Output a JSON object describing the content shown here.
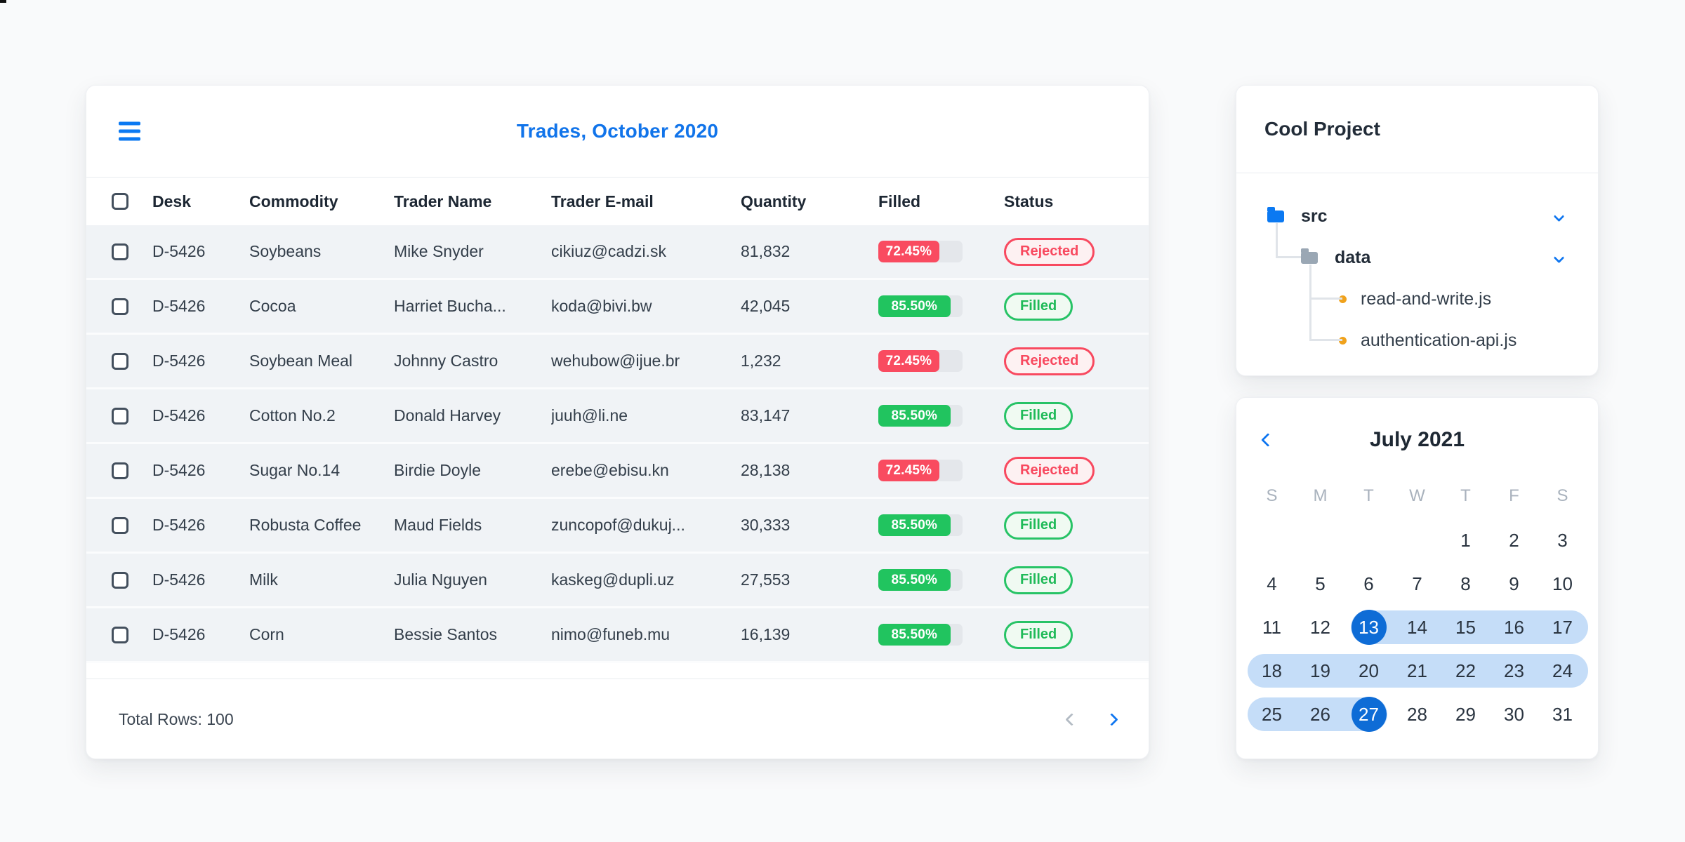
{
  "artifact_text": "g",
  "trades": {
    "title": "Trades, October 2020",
    "columns": [
      "Desk",
      "Commodity",
      "Trader Name",
      "Trader E-mail",
      "Quantity",
      "Filled",
      "Status"
    ],
    "rows": [
      {
        "desk": "D-5426",
        "commodity": "Soybeans",
        "trader_name": "Mike Snyder",
        "trader_email": "cikiuz@cadzi.sk",
        "quantity": "81,832",
        "filled_percent": "72.45%",
        "filled_value": 72.45,
        "status": "Rejected"
      },
      {
        "desk": "D-5426",
        "commodity": "Cocoa",
        "trader_name": "Harriet Bucha...",
        "trader_email": "koda@bivi.bw",
        "quantity": "42,045",
        "filled_percent": "85.50%",
        "filled_value": 85.5,
        "status": "Filled"
      },
      {
        "desk": "D-5426",
        "commodity": "Soybean Meal",
        "trader_name": "Johnny Castro",
        "trader_email": "wehubow@ijue.br",
        "quantity": "1,232",
        "filled_percent": "72.45%",
        "filled_value": 72.45,
        "status": "Rejected"
      },
      {
        "desk": "D-5426",
        "commodity": "Cotton No.2",
        "trader_name": "Donald Harvey",
        "trader_email": "juuh@li.ne",
        "quantity": "83,147",
        "filled_percent": "85.50%",
        "filled_value": 85.5,
        "status": "Filled"
      },
      {
        "desk": "D-5426",
        "commodity": "Sugar No.14",
        "trader_name": "Birdie Doyle",
        "trader_email": "erebe@ebisu.kn",
        "quantity": "28,138",
        "filled_percent": "72.45%",
        "filled_value": 72.45,
        "status": "Rejected"
      },
      {
        "desk": "D-5426",
        "commodity": "Robusta Coffee",
        "trader_name": "Maud Fields",
        "trader_email": "zuncopof@dukuj...",
        "quantity": "30,333",
        "filled_percent": "85.50%",
        "filled_value": 85.5,
        "status": "Filled"
      },
      {
        "desk": "D-5426",
        "commodity": "Milk",
        "trader_name": "Julia Nguyen",
        "trader_email": "kaskeg@dupli.uz",
        "quantity": "27,553",
        "filled_percent": "85.50%",
        "filled_value": 85.5,
        "status": "Filled"
      },
      {
        "desk": "D-5426",
        "commodity": "Corn",
        "trader_name": "Bessie Santos",
        "trader_email": "nimo@funeb.mu",
        "quantity": "16,139",
        "filled_percent": "85.50%",
        "filled_value": 85.5,
        "status": "Filled"
      }
    ],
    "footer": {
      "total_label": "Total Rows: 100"
    },
    "pagination": {
      "prev_enabled": false,
      "next_enabled": true
    }
  },
  "project": {
    "title": "Cool Project",
    "tree": [
      {
        "name": "src",
        "type": "folder",
        "level": 0,
        "icon_color": "#0b79f2",
        "expanded": true
      },
      {
        "name": "data",
        "type": "folder",
        "level": 1,
        "icon_color": "#9aa7b4",
        "expanded": true
      },
      {
        "name": "read-and-write.js",
        "type": "file",
        "level": 2,
        "dot_color": "#f0a21c"
      },
      {
        "name": "authentication-api.js",
        "type": "file",
        "level": 2,
        "dot_color": "#f0a21c"
      }
    ]
  },
  "calendar": {
    "title": "July 2021",
    "weekday_labels": [
      "S",
      "M",
      "T",
      "W",
      "T",
      "F",
      "S"
    ],
    "weeks": [
      [
        null,
        null,
        null,
        null,
        1,
        2,
        3
      ],
      [
        4,
        5,
        6,
        7,
        8,
        9,
        10
      ],
      [
        11,
        12,
        13,
        14,
        15,
        16,
        17
      ],
      [
        18,
        19,
        20,
        21,
        22,
        23,
        24
      ],
      [
        25,
        26,
        27,
        28,
        29,
        30,
        31
      ]
    ],
    "selected_range": {
      "start": 13,
      "end": 27
    }
  },
  "colors": {
    "accent_blue": "#0f76f0",
    "title_blue": "#1174ea",
    "selected_day_blue": "#0e6cd6",
    "range_band_blue": "#c5ddf8",
    "bar_red": "#f94b60",
    "bar_green": "#21c45f",
    "badge_red_bg": "#fdf1f2",
    "badge_green_bg": "#f0faf2",
    "bar_track": "#e4e7eb",
    "row_bg": "#f0f3f6",
    "folder_gray": "#9aa7b4",
    "file_dot_orange": "#f0a21c",
    "page_bg": "#f9fafb"
  }
}
